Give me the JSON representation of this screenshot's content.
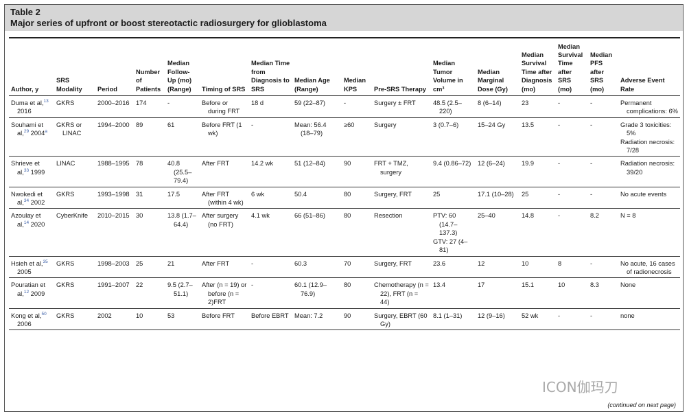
{
  "header": {
    "label": "Table 2",
    "title": "Major series of upfront or boost stereotactic radiosurgery for glioblastoma"
  },
  "table": {
    "columns": [
      "Author, y",
      "SRS Modality",
      "Period",
      "Number of Patients",
      "Median Follow-Up (mo) (Range)",
      "Timing of SRS",
      "Median Time from Diagnosis to SRS",
      "Median Age (Range)",
      "Median KPS",
      "Pre-SRS Therapy",
      "Median Tumor Volume in cm³",
      "Median Marginal Dose (Gy)",
      "Median Survival Time after Diagnosis (mo)",
      "Median Survival Time after SRS (mo)",
      "Median PFS after SRS (mo)",
      "Adverse Event Rate"
    ],
    "rows": [
      {
        "author": "Duma et al,",
        "ref": "13",
        "year": "2016",
        "cells": [
          "GKRS",
          "2000–2016",
          "174",
          "-",
          "Before or during FRT",
          "18 d",
          "59 (22–87)",
          "-",
          "Surgery ± FRT",
          "48.5 (2.5–220)",
          "8 (6–14)",
          "23",
          "-",
          "-",
          [
            "Permanent complications: 6%"
          ]
        ]
      },
      {
        "author": "Souhami et al,",
        "ref": "29",
        "year": "2004",
        "year_note": "a",
        "cells": [
          "GKRS or LINAC",
          "1994–2000",
          "89",
          "61",
          "Before FRT (1 wk)",
          "-",
          "Mean: 56.4 (18–79)",
          "≥60",
          "Surgery",
          "3 (0.7–6)",
          "15–24 Gy",
          "13.5",
          "-",
          "-",
          [
            "Grade 3 toxicities: 5%",
            "Radiation necrosis: 7/28"
          ]
        ]
      },
      {
        "author": "Shrieve et al,",
        "ref": "33",
        "year": "1999",
        "cells": [
          "LINAC",
          "1988–1995",
          "78",
          "40.8 (25.5–79.4)",
          "After FRT",
          "14.2 wk",
          "51 (12–84)",
          "90",
          "FRT + TMZ, surgery",
          "9.4 (0.86–72)",
          "12 (6–24)",
          "19.9",
          "-",
          "-",
          [
            "Radiation necrosis: 39/20"
          ]
        ]
      },
      {
        "author": "Nwokedi et al,",
        "ref": "34",
        "year": "2002",
        "cells": [
          "GKRS",
          "1993–1998",
          "31",
          "17.5",
          "After FRT (within 4 wk)",
          "6 wk",
          "50.4",
          "80",
          "Surgery, FRT",
          "25",
          "17.1 (10–28)",
          "25",
          "-",
          "-",
          [
            "No acute events"
          ]
        ]
      },
      {
        "author": "Azoulay et al,",
        "ref": "14",
        "year": "2020",
        "cells": [
          "CyberKnife",
          "2010–2015",
          "30",
          "13.8 (1.7–64.4)",
          "After surgery (no FRT)",
          "4.1 wk",
          "66 (51–86)",
          "80",
          "Resection",
          [
            "PTV: 60 (14.7–137.3)",
            "GTV: 27 (4–81)"
          ],
          "25–40",
          "14.8",
          "-",
          "8.2",
          [
            "N = 8"
          ]
        ]
      },
      {
        "author": "Hsieh et al,",
        "ref": "35",
        "year": "2005",
        "cells": [
          "GKRS",
          "1998–2003",
          "25",
          "21",
          "After FRT",
          "-",
          "60.3",
          "70",
          "Surgery, FRT",
          "23.6",
          "12",
          "10",
          "8",
          "-",
          [
            "No acute, 16 cases of radionecrosis"
          ]
        ]
      },
      {
        "author": "Pouratian et al,",
        "ref": "12",
        "year": "2009",
        "cells": [
          "GKRS",
          "1991–2007",
          "22",
          "9.5 (2.7–51.1)",
          "After (n = 19) or before (n = 2)FRT",
          "-",
          "60.1 (12.9–76.9)",
          "80",
          "Chemotherapy (n = 22), FRT (n = 44)",
          "13.4",
          "17",
          "15.1",
          "10",
          "8.3",
          [
            "None"
          ]
        ]
      },
      {
        "author": "Kong et al,",
        "ref": "50",
        "year": "2006",
        "cells": [
          "GKRS",
          "2002",
          "10",
          "53",
          "Before FRT",
          "Before EBRT",
          "Mean: 7.2",
          "90",
          "Surgery, EBRT (60 Gy)",
          "8.1 (1–31)",
          "12 (9–16)",
          "52 wk",
          "-",
          "-",
          [
            "none"
          ]
        ]
      }
    ]
  },
  "footer": "(continued on next page)",
  "watermark": "ICON伽玛刀"
}
